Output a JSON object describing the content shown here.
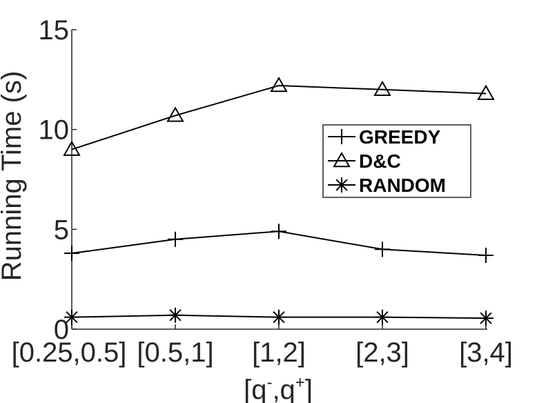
{
  "chart_data": {
    "type": "line",
    "categories": [
      "[0.25,0.5]",
      "[0.5,1]",
      "[1,2]",
      "[2,3]",
      "[3,4]"
    ],
    "series": [
      {
        "name": "GREEDY",
        "marker": "plus",
        "values": [
          3.8,
          4.5,
          4.9,
          4.0,
          3.7
        ]
      },
      {
        "name": "D&C",
        "marker": "triangle",
        "values": [
          9.0,
          10.7,
          12.2,
          12.0,
          11.8
        ]
      },
      {
        "name": "RANDOM",
        "marker": "asterisk",
        "values": [
          0.6,
          0.7,
          0.6,
          0.6,
          0.55
        ]
      }
    ],
    "xlabel": "[q-,q+]",
    "xlabel_parts": {
      "q1": "q",
      "sup1": "-",
      "sep": ",q",
      "sup2": "+",
      "open": "[",
      "close": "]"
    },
    "ylabel": "Running Time (s)",
    "ylim": [
      0,
      15
    ],
    "yticks": [
      "0",
      "5",
      "10",
      "15"
    ],
    "grid": false,
    "legend_position": "right-middle",
    "line_color": "#000000"
  }
}
